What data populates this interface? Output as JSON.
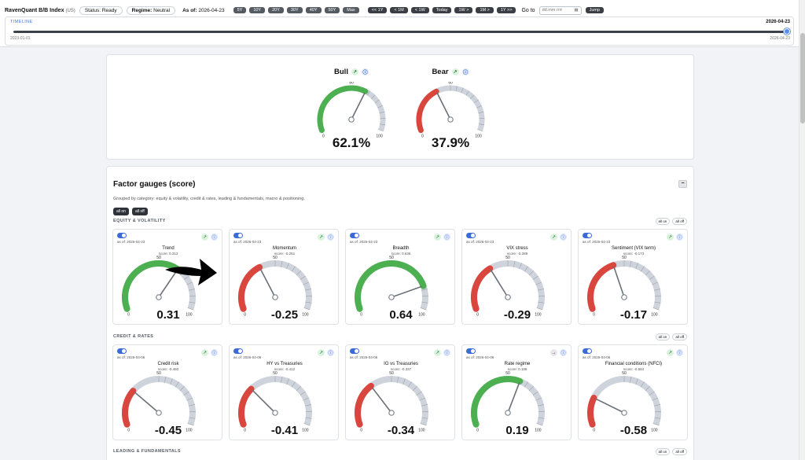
{
  "header": {
    "brand": "RavenQuant B/B Index",
    "brand_sub": "(US)",
    "status_label": "Status:",
    "status_value": "Ready",
    "regime_label": "Regime:",
    "regime_value": "Neutral",
    "asof_label": "As of:",
    "asof_value": "2026-04-23",
    "range_buttons": [
      "5Y",
      "10Y",
      "20Y",
      "30Y",
      "40Y",
      "50Y",
      "Max"
    ],
    "step_buttons": [
      "<< 1Y",
      "< 1M",
      "< 1W",
      "Today",
      "1W >",
      "1M >",
      "1Y >>"
    ],
    "goto_label": "Go to",
    "date_placeholder": "dd.mm.rrrr",
    "jump_label": "Jump"
  },
  "timeline": {
    "label": "TIMELINE",
    "current": "2026-04-23",
    "start": "2023-01-01",
    "end": "2026-04-23",
    "position": 1.0
  },
  "bull_bear": {
    "bull": {
      "title": "Bull",
      "value": 62.1,
      "display": "62.1%",
      "color": "#4caf50"
    },
    "bear": {
      "title": "Bear",
      "value": 37.9,
      "display": "37.9%",
      "color": "#d9463e"
    }
  },
  "gauge_labels": {
    "min": "0",
    "mid": "50",
    "max": "100"
  },
  "factor": {
    "title": "Factor gauges (score)",
    "collapse_label": "−",
    "description": "Grouped by category: equity & volatility, credit & rates, leading & fundamentals, macro & positioning.",
    "all_on": "all on",
    "all_off": "all off",
    "sections": [
      {
        "title": "EQUITY & VOLATILITY",
        "all_on": "all on",
        "all_off": "all off",
        "gauges": [
          {
            "name": "Trend",
            "asof": "as of: 2026-04-23",
            "score_text": "score: 0.313",
            "value": 0.31,
            "display": "0.31",
            "trend_icon": "↗"
          },
          {
            "name": "Momentum",
            "asof": "as of: 2026-04-23",
            "score_text": "score: -0.251",
            "value": -0.25,
            "display": "-0.25",
            "trend_icon": "↗"
          },
          {
            "name": "Breadth",
            "asof": "as of: 2026-04-23",
            "score_text": "score: 0.636",
            "value": 0.64,
            "display": "0.64",
            "trend_icon": "↗"
          },
          {
            "name": "VIX stress",
            "asof": "as of: 2026-04-23",
            "score_text": "score: -0.289",
            "value": -0.29,
            "display": "-0.29",
            "trend_icon": "↗"
          },
          {
            "name": "Sentiment (VIX term)",
            "asof": "as of: 2026-04-23",
            "score_text": "score: -0.173",
            "value": -0.17,
            "display": "-0.17",
            "trend_icon": "↗"
          }
        ]
      },
      {
        "title": "CREDIT & RATES",
        "all_on": "all on",
        "all_off": "all off",
        "gauges": [
          {
            "name": "Credit risk",
            "asof": "as of: 2026-04-06",
            "score_text": "score: -0.450",
            "value": -0.45,
            "display": "-0.45",
            "trend_icon": "↗"
          },
          {
            "name": "HY vs Treasuries",
            "asof": "as of: 2026-04-06",
            "score_text": "score: -0.412",
            "value": -0.41,
            "display": "-0.41",
            "trend_icon": "↗"
          },
          {
            "name": "IG vs Treasuries",
            "asof": "as of: 2026-04-06",
            "score_text": "score: -0.337",
            "value": -0.34,
            "display": "-0.34",
            "trend_icon": "↗"
          },
          {
            "name": "Rate regime",
            "asof": "as of: 2026-04-06",
            "score_text": "score: 0.188",
            "value": 0.19,
            "display": "0.19",
            "trend_icon": "→"
          },
          {
            "name": "Financial conditions (NFCI)",
            "asof": "as of: 2026-04-06",
            "score_text": "score: -0.584",
            "value": -0.58,
            "display": "-0.58",
            "trend_icon": "↗"
          }
        ]
      },
      {
        "title": "LEADING & FUNDAMENTALS",
        "all_on": "all on",
        "all_off": "all off",
        "gauges": []
      }
    ]
  },
  "colors": {
    "positive": "#4caf50",
    "negative": "#d9463e",
    "track": "#cfd4dc",
    "needle": "#6b7078"
  }
}
